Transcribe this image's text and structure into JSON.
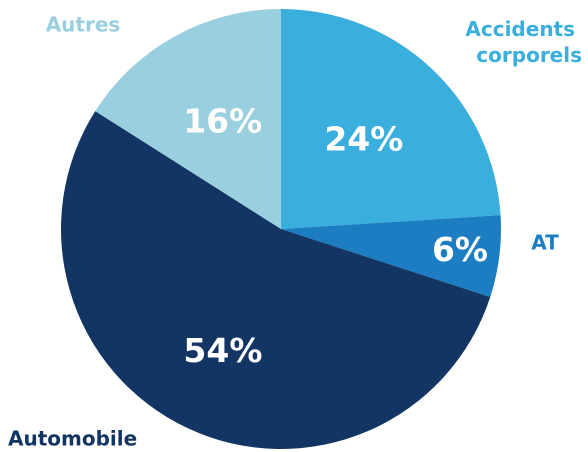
{
  "chart_data": {
    "type": "pie",
    "title": "",
    "slices": [
      {
        "category": "Accidents corporels",
        "value": 24,
        "label": "24%",
        "color": "#3AAEDC",
        "label_color": "#3AAEDC"
      },
      {
        "category": "AT",
        "value": 6,
        "label": "6%",
        "color": "#1C7DC3",
        "label_color": "#1C7DC3"
      },
      {
        "category": "Automobile",
        "value": 54,
        "label": "54%",
        "color": "#133563",
        "label_color": "#133563"
      },
      {
        "category": "Autres",
        "value": 16,
        "label": "16%",
        "color": "#9ACFE0",
        "label_color": "#9ACFE0"
      }
    ],
    "start_angle": "12 o'clock",
    "direction": "clockwise",
    "legend": "none"
  }
}
